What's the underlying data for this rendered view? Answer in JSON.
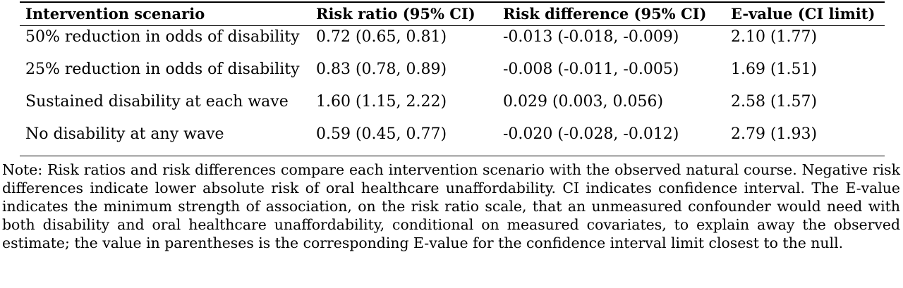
{
  "table": {
    "headers": {
      "scenario": "Intervention scenario",
      "risk_ratio": "Risk ratio (95% CI)",
      "risk_difference": "Risk difference (95% CI)",
      "e_value": "E-value (CI limit)"
    },
    "rows": [
      {
        "scenario": "50% reduction in odds of disability",
        "risk_ratio": "0.72 (0.65, 0.81)",
        "risk_difference": "-0.013 (-0.018, -0.009)",
        "e_value": "2.10 (1.77)"
      },
      {
        "scenario": "25% reduction in odds of disability",
        "risk_ratio": "0.83 (0.78, 0.89)",
        "risk_difference": "-0.008 (-0.011, -0.005)",
        "e_value": "1.69 (1.51)"
      },
      {
        "scenario": "Sustained disability at each wave",
        "risk_ratio": "1.60 (1.15, 2.22)",
        "risk_difference": "0.029 (0.003, 0.056)",
        "e_value": "2.58 (1.57)"
      },
      {
        "scenario": "No disability at any wave",
        "risk_ratio": "0.59 (0.45, 0.77)",
        "risk_difference": "-0.020 (-0.028, -0.012)",
        "e_value": "2.79 (1.93)"
      }
    ]
  },
  "note": "Note: Risk ratios and risk differences compare each intervention scenario with the observed natural course. Negative risk differences indicate lower absolute risk of oral healthcare unaffordability. CI indicates confidence interval. The E-value indicates the minimum strength of association, on the risk ratio scale, that an unmeasured confounder would need with both disability and oral healthcare unaffordability, conditional on measured covariates, to explain away the observed estimate; the value in parentheses is the corresponding E-value for the confidence interval limit closest to the null."
}
